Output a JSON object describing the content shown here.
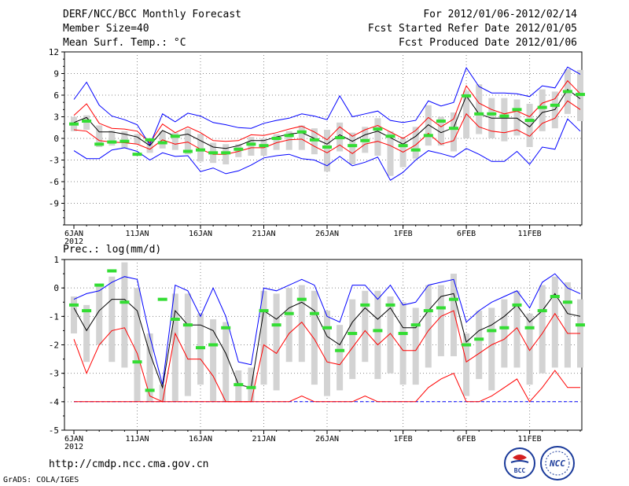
{
  "header": {
    "title": "DERF/NCC/BCC Monthly Forecast",
    "member_size": "Member Size=40",
    "period": "For 2012/01/06-2012/02/14",
    "started": "Fcst Started Refer Date 2012/01/05",
    "produced": "Fcst Produced Date 2012/01/06"
  },
  "footer": {
    "url": "http://cmdp.ncc.cma.gov.cn",
    "grads": "GrADS: COLA/IGES",
    "logo_left_text": "BCC",
    "logo_right_text": "NCC"
  },
  "colors": {
    "max_min": "#0000ff",
    "spread": "#ff0000",
    "mean": "#000000",
    "box": "#d3d3d3",
    "obs": "#33dd33",
    "grid": "#888888"
  },
  "chart_data": [
    {
      "type": "line",
      "title": "Mean Surf. Temp.: °C",
      "x_tick_labels": [
        "6JAN\n2012",
        "11JAN",
        "16JAN",
        "21JAN",
        "26JAN",
        "1FEB",
        "6FEB",
        "11FEB"
      ],
      "x_tick_days": [
        0,
        5,
        10,
        15,
        20,
        26,
        31,
        36
      ],
      "ylim": [
        -12,
        12
      ],
      "y_ticks": [
        -9,
        -6,
        -3,
        0,
        3,
        6,
        9,
        12
      ],
      "series": [
        {
          "name": "max",
          "values": [
            5.4,
            7.8,
            4.6,
            3.1,
            2.6,
            1.9,
            -0.9,
            3.4,
            2.3,
            3.5,
            3.1,
            2.2,
            1.9,
            1.5,
            1.4,
            2.1,
            2.5,
            2.8,
            3.4,
            3.1,
            2.6,
            5.9,
            3.0,
            3.4,
            3.8,
            2.5,
            2.2,
            2.5,
            5.2,
            4.5,
            5.0,
            9.8,
            7.2,
            6.3,
            6.3,
            6.2,
            5.8,
            7.3,
            7.0,
            9.9,
            8.9
          ]
        },
        {
          "name": "upper",
          "values": [
            3.2,
            4.8,
            2.1,
            1.4,
            1.3,
            1.0,
            -0.6,
            2.0,
            0.8,
            1.6,
            0.8,
            -0.3,
            -0.4,
            -0.3,
            0.5,
            0.4,
            0.8,
            1.3,
            1.7,
            0.9,
            -0.2,
            1.6,
            0.3,
            1.2,
            1.8,
            0.9,
            0.0,
            1.1,
            2.9,
            1.6,
            2.7,
            7.3,
            4.9,
            4.0,
            3.4,
            3.8,
            3.0,
            4.9,
            5.5,
            8.0,
            6.2
          ]
        },
        {
          "name": "mean",
          "values": [
            2.2,
            2.9,
            0.9,
            0.9,
            0.6,
            0.2,
            -1.0,
            1.1,
            0.3,
            0.6,
            -0.3,
            -1.2,
            -1.4,
            -1.0,
            -0.3,
            -0.3,
            0.2,
            0.6,
            0.8,
            0.0,
            -0.8,
            0.5,
            -0.4,
            0.5,
            1.0,
            0.1,
            -0.8,
            0.3,
            1.9,
            0.8,
            1.5,
            5.9,
            3.4,
            2.8,
            2.8,
            2.8,
            1.6,
            3.6,
            4.0,
            6.8,
            5.5
          ]
        },
        {
          "name": "lower",
          "values": [
            1.2,
            1.0,
            -0.3,
            -0.5,
            -0.6,
            -0.8,
            -1.5,
            -0.2,
            -0.8,
            -0.5,
            -1.5,
            -2.2,
            -2.2,
            -1.8,
            -1.3,
            -1.3,
            -0.6,
            -0.2,
            -0.1,
            -1.1,
            -2.0,
            -0.9,
            -2.1,
            -0.8,
            -0.4,
            -1.0,
            -1.9,
            -0.9,
            0.7,
            -0.8,
            -0.3,
            3.4,
            1.6,
            1.0,
            0.8,
            1.2,
            0.3,
            2.1,
            2.8,
            5.2,
            4.0
          ]
        },
        {
          "name": "min",
          "values": [
            -1.7,
            -2.8,
            -2.8,
            -1.6,
            -1.3,
            -1.8,
            -3.0,
            -2.0,
            -2.5,
            -2.4,
            -4.6,
            -4.1,
            -4.9,
            -4.5,
            -3.7,
            -2.7,
            -2.4,
            -2.2,
            -2.8,
            -3.0,
            -3.8,
            -2.5,
            -3.8,
            -3.3,
            -2.6,
            -5.8,
            -4.7,
            -3.0,
            -1.7,
            -2.1,
            -2.6,
            -1.4,
            -2.2,
            -3.2,
            -3.2,
            -1.8,
            -3.6,
            -1.2,
            -1.5,
            2.7,
            1.0
          ]
        },
        {
          "name": "box_high",
          "values": [
            3.0,
            3.2,
            1.8,
            1.1,
            1.0,
            0.6,
            -0.2,
            1.0,
            0.8,
            1.3,
            0.6,
            -0.6,
            -0.8,
            -0.8,
            0.2,
            0.0,
            0.6,
            1.0,
            1.8,
            1.4,
            1.2,
            2.2,
            0.8,
            1.6,
            2.8,
            1.0,
            0.0,
            1.6,
            4.6,
            3.0,
            3.6,
            6.6,
            7.5,
            5.6,
            5.6,
            5.4,
            4.8,
            6.8,
            6.5,
            9.6,
            9.5
          ]
        },
        {
          "name": "box_low",
          "values": [
            1.0,
            1.2,
            -1.2,
            -1.0,
            -1.4,
            -0.8,
            -2.0,
            -1.4,
            -1.6,
            -2.2,
            -3.2,
            -3.4,
            -3.6,
            -2.6,
            -2.4,
            -2.4,
            -1.6,
            -1.6,
            -1.6,
            -2.2,
            -4.6,
            -1.8,
            -3.6,
            -2.0,
            -2.4,
            -5.2,
            -4.0,
            -2.8,
            -1.0,
            -1.0,
            -1.8,
            0.0,
            0.6,
            0.0,
            -0.4,
            0.4,
            -1.2,
            1.0,
            1.4,
            3.4,
            2.4
          ]
        },
        {
          "name": "obs",
          "values": [
            2.0,
            2.4,
            -0.8,
            -0.5,
            -0.4,
            -2.2,
            -0.2,
            -0.6,
            0.3,
            -1.8,
            -1.6,
            -2.0,
            -2.0,
            -1.5,
            -0.8,
            -1.0,
            0.0,
            0.4,
            0.9,
            -0.2,
            -1.2,
            0.1,
            -1.0,
            -0.3,
            1.3,
            0.3,
            -1.0,
            -1.6,
            0.4,
            2.4,
            1.4,
            5.9,
            3.4,
            3.4,
            3.1,
            4.0,
            2.5,
            4.3,
            4.6,
            6.5,
            6.1
          ]
        }
      ]
    },
    {
      "type": "line",
      "title": "Prec.: log(mm/d)",
      "x_tick_labels": [
        "6JAN\n2012",
        "11JAN",
        "16JAN",
        "21JAN",
        "26JAN",
        "1FEB",
        "6FEB",
        "11FEB"
      ],
      "x_tick_days": [
        0,
        5,
        10,
        15,
        20,
        26,
        31,
        36
      ],
      "ylim": [
        -5,
        1
      ],
      "y_ticks": [
        -5,
        -4,
        -3,
        -2,
        -1,
        0,
        1
      ],
      "series": [
        {
          "name": "max",
          "values": [
            -0.4,
            -0.2,
            -0.1,
            0.2,
            0.4,
            0.3,
            -1.7,
            -3.4,
            0.1,
            -0.1,
            -1.0,
            0.0,
            -1.0,
            -2.6,
            -2.7,
            0.0,
            -0.1,
            0.1,
            0.3,
            0.1,
            -1.0,
            -1.2,
            0.1,
            0.1,
            -0.4,
            0.1,
            -0.6,
            -0.5,
            0.1,
            0.2,
            0.3,
            -1.2,
            -0.8,
            -0.5,
            -0.3,
            -0.1,
            -0.7,
            0.2,
            0.5,
            0.0,
            -0.2
          ]
        },
        {
          "name": "mean",
          "values": [
            -0.7,
            -1.5,
            -0.8,
            -0.4,
            -0.4,
            -0.8,
            -2.3,
            -3.5,
            -0.8,
            -1.3,
            -1.3,
            -1.5,
            -2.3,
            -3.4,
            -3.5,
            -0.8,
            -1.1,
            -0.7,
            -0.5,
            -0.8,
            -1.7,
            -2.0,
            -1.2,
            -0.7,
            -1.1,
            -0.7,
            -1.4,
            -1.4,
            -0.8,
            -0.3,
            -0.2,
            -1.9,
            -1.5,
            -1.3,
            -1.0,
            -0.6,
            -1.2,
            -0.8,
            -0.2,
            -0.9,
            -1.0
          ]
        },
        {
          "name": "upper",
          "values": [
            -1.8,
            -3.0,
            -2.0,
            -1.5,
            -1.4,
            -2.3,
            -3.8,
            -4.0,
            -1.6,
            -2.5,
            -2.5,
            -3.1,
            -4.0,
            -4.0,
            -4.0,
            -2.0,
            -2.3,
            -1.6,
            -1.2,
            -1.8,
            -2.6,
            -2.7,
            -2.1,
            -1.5,
            -2.0,
            -1.6,
            -2.2,
            -2.2,
            -1.5,
            -1.0,
            -0.8,
            -2.6,
            -2.3,
            -2.0,
            -1.8,
            -1.4,
            -2.2,
            -1.6,
            -0.9,
            -1.6,
            -1.6
          ]
        },
        {
          "name": "lower",
          "values": [
            -4.0,
            -4.0,
            -4.0,
            -4.0,
            -4.0,
            -4.0,
            -4.0,
            -4.0,
            -4.0,
            -4.0,
            -4.0,
            -4.0,
            -4.0,
            -4.0,
            -4.0,
            -4.0,
            -4.0,
            -4.0,
            -3.8,
            -4.0,
            -4.0,
            -4.0,
            -4.0,
            -3.8,
            -4.0,
            -4.0,
            -4.0,
            -4.0,
            -3.5,
            -3.2,
            -3.0,
            -4.0,
            -4.0,
            -3.8,
            -3.5,
            -3.2,
            -4.0,
            -3.5,
            -2.9,
            -3.5,
            -3.5
          ]
        },
        {
          "name": "min",
          "values": [
            -4.0,
            -4.0,
            -4.0,
            -4.0,
            -4.0,
            -4.0,
            -4.0,
            -4.0,
            -4.0,
            -4.0,
            -4.0,
            -4.0,
            -4.0,
            -4.0,
            -4.0,
            -4.0,
            -4.0,
            -4.0,
            -4.0,
            -4.0,
            -4.0,
            -4.0,
            -4.0,
            -4.0,
            -4.0,
            -4.0,
            -4.0,
            -4.0,
            -4.0,
            -4.0,
            -4.0,
            -4.0,
            -4.0,
            -4.0,
            -4.0,
            -4.0,
            -4.0,
            -4.0,
            -4.0,
            -4.0,
            -4.0
          ]
        },
        {
          "name": "box_high",
          "values": [
            -0.3,
            -0.6,
            0.1,
            0.4,
            0.9,
            0.0,
            -1.6,
            -3.4,
            -0.2,
            -0.2,
            -0.9,
            -1.1,
            -1.2,
            -2.9,
            -2.8,
            -0.1,
            -0.2,
            0.0,
            0.1,
            -0.1,
            -0.8,
            -1.3,
            -0.4,
            -0.1,
            -0.1,
            -0.3,
            -0.5,
            -0.7,
            0.1,
            0.1,
            0.5,
            -1.6,
            -0.8,
            -0.7,
            -0.4,
            -0.1,
            -0.9,
            0.1,
            0.4,
            0.2,
            -0.4
          ]
        },
        {
          "name": "box_low",
          "values": [
            -1.6,
            -2.6,
            -2.0,
            -2.6,
            -2.8,
            -4.0,
            -4.0,
            -4.0,
            -4.0,
            -3.8,
            -3.4,
            -4.0,
            -4.0,
            -4.0,
            -4.0,
            -3.4,
            -3.6,
            -2.6,
            -2.6,
            -3.4,
            -3.8,
            -3.6,
            -3.2,
            -2.6,
            -3.2,
            -3.0,
            -3.4,
            -3.4,
            -2.8,
            -2.4,
            -2.4,
            -3.8,
            -3.2,
            -3.6,
            -2.8,
            -2.8,
            -3.4,
            -3.0,
            -2.8,
            -2.8,
            -2.8
          ]
        },
        {
          "name": "obs",
          "values": [
            -0.6,
            -0.8,
            0.1,
            0.6,
            -0.5,
            -2.6,
            -3.6,
            -0.4,
            -1.1,
            -1.3,
            -2.1,
            -2.0,
            -1.4,
            -3.4,
            -3.5,
            -0.8,
            -1.3,
            -0.9,
            -0.4,
            -0.9,
            -1.4,
            -2.2,
            -1.6,
            -0.6,
            -1.5,
            -0.6,
            -1.6,
            -1.3,
            -0.8,
            -0.7,
            -0.4,
            -2.0,
            -1.8,
            -1.5,
            -1.4,
            -0.6,
            -1.4,
            -0.8,
            -0.3,
            -0.5,
            -1.3
          ]
        }
      ]
    }
  ]
}
